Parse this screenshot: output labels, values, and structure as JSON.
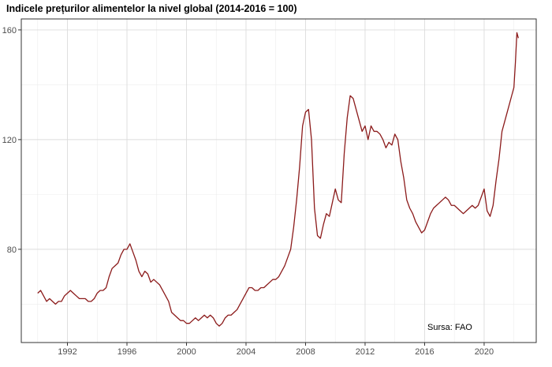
{
  "chart_data": {
    "type": "line",
    "title": "Indicele prețurilor alimentelor la nivel global (2014-2016 = 100)",
    "xlabel": "",
    "ylabel": "",
    "xlim": [
      1988.9,
      2023.5
    ],
    "ylim": [
      46,
      164
    ],
    "x_ticks": [
      1992,
      1996,
      2000,
      2004,
      2008,
      2012,
      2016,
      2020
    ],
    "y_ticks": [
      80,
      120,
      160
    ],
    "grid": true,
    "line_color": "#8b1a1a",
    "annotation": "Sursa: FAO",
    "series": [
      {
        "x": [
          1990.0,
          1990.2,
          1990.4,
          1990.6,
          1990.8,
          1991.0,
          1991.2,
          1991.4,
          1991.6,
          1991.8,
          1992.0,
          1992.2,
          1992.4,
          1992.6,
          1992.8,
          1993.0,
          1993.2,
          1993.4,
          1993.6,
          1993.8,
          1994.0,
          1994.2,
          1994.4,
          1994.6,
          1994.8,
          1995.0,
          1995.2,
          1995.4,
          1995.6,
          1995.8,
          1996.0,
          1996.2,
          1996.4,
          1996.6,
          1996.8,
          1997.0,
          1997.2,
          1997.4,
          1997.6,
          1997.8,
          1998.0,
          1998.2,
          1998.4,
          1998.6,
          1998.8,
          1999.0,
          1999.2,
          1999.4,
          1999.6,
          1999.8,
          2000.0,
          2000.2,
          2000.4,
          2000.6,
          2000.8,
          2001.0,
          2001.2,
          2001.4,
          2001.6,
          2001.8,
          2002.0,
          2002.2,
          2002.4,
          2002.6,
          2002.8,
          2003.0,
          2003.2,
          2003.4,
          2003.6,
          2003.8,
          2004.0,
          2004.2,
          2004.4,
          2004.6,
          2004.8,
          2005.0,
          2005.2,
          2005.4,
          2005.6,
          2005.8,
          2006.0,
          2006.2,
          2006.4,
          2006.6,
          2006.8,
          2007.0,
          2007.2,
          2007.4,
          2007.6,
          2007.8,
          2008.0,
          2008.2,
          2008.4,
          2008.6,
          2008.8,
          2009.0,
          2009.2,
          2009.4,
          2009.6,
          2009.8,
          2010.0,
          2010.2,
          2010.4,
          2010.6,
          2010.8,
          2011.0,
          2011.2,
          2011.4,
          2011.6,
          2011.8,
          2012.0,
          2012.2,
          2012.4,
          2012.6,
          2012.8,
          2013.0,
          2013.2,
          2013.4,
          2013.6,
          2013.8,
          2014.0,
          2014.2,
          2014.4,
          2014.6,
          2014.8,
          2015.0,
          2015.2,
          2015.4,
          2015.6,
          2015.8,
          2016.0,
          2016.2,
          2016.4,
          2016.6,
          2016.8,
          2017.0,
          2017.2,
          2017.4,
          2017.6,
          2017.8,
          2018.0,
          2018.2,
          2018.4,
          2018.6,
          2018.8,
          2019.0,
          2019.2,
          2019.4,
          2019.6,
          2019.8,
          2020.0,
          2020.2,
          2020.4,
          2020.6,
          2020.8,
          2021.0,
          2021.2,
          2021.4,
          2021.6,
          2021.8,
          2022.0,
          2022.1,
          2022.2,
          2022.3
        ],
        "y": [
          64,
          65,
          63,
          61,
          62,
          61,
          60,
          61,
          61,
          63,
          64,
          65,
          64,
          63,
          62,
          62,
          62,
          61,
          61,
          62,
          64,
          65,
          65,
          66,
          70,
          73,
          74,
          75,
          78,
          80,
          80,
          82,
          79,
          76,
          72,
          70,
          72,
          71,
          68,
          69,
          68,
          67,
          65,
          63,
          61,
          57,
          56,
          55,
          54,
          54,
          53,
          53,
          54,
          55,
          54,
          55,
          56,
          55,
          56,
          55,
          53,
          52,
          53,
          55,
          56,
          56,
          57,
          58,
          60,
          62,
          64,
          66,
          66,
          65,
          65,
          66,
          66,
          67,
          68,
          69,
          69,
          70,
          72,
          74,
          77,
          80,
          88,
          98,
          110,
          125,
          130,
          131,
          120,
          95,
          85,
          84,
          89,
          93,
          92,
          97,
          102,
          98,
          97,
          115,
          128,
          136,
          135,
          131,
          127,
          123,
          125,
          120,
          125,
          123,
          123,
          122,
          120,
          117,
          119,
          118,
          122,
          120,
          112,
          106,
          98,
          95,
          93,
          90,
          88,
          86,
          87,
          90,
          93,
          95,
          96,
          97,
          98,
          99,
          98,
          96,
          96,
          95,
          94,
          93,
          94,
          95,
          96,
          95,
          96,
          99,
          102,
          94,
          92,
          96,
          105,
          113,
          123,
          127,
          131,
          135,
          139,
          148,
          159,
          157
        ]
      }
    ]
  }
}
